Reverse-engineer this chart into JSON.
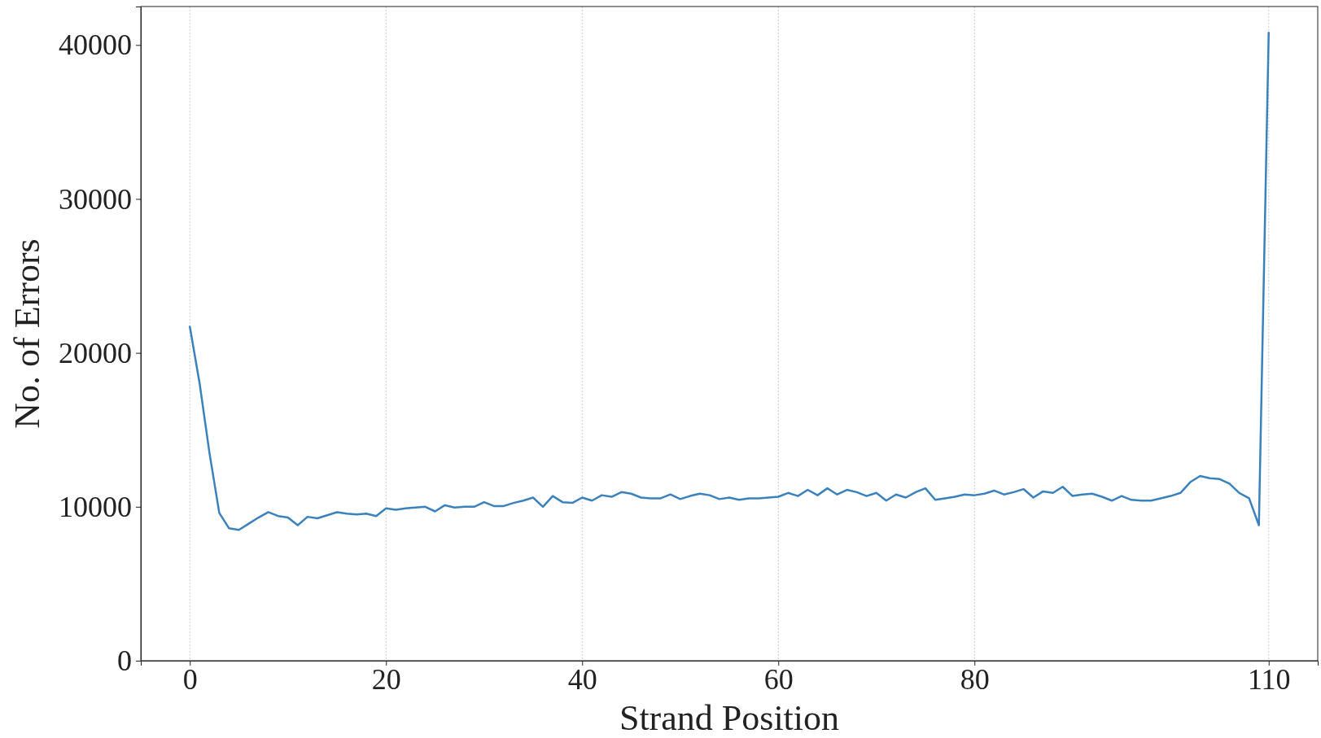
{
  "chart_data": {
    "type": "line",
    "xlabel": "Strand Position",
    "ylabel": "No. of Errors",
    "x": [
      0,
      1,
      2,
      3,
      4,
      5,
      6,
      7,
      8,
      9,
      10,
      11,
      12,
      13,
      14,
      15,
      16,
      17,
      18,
      19,
      20,
      21,
      22,
      23,
      24,
      25,
      26,
      27,
      28,
      29,
      30,
      31,
      32,
      33,
      34,
      35,
      36,
      37,
      38,
      39,
      40,
      41,
      42,
      43,
      44,
      45,
      46,
      47,
      48,
      49,
      50,
      51,
      52,
      53,
      54,
      55,
      56,
      57,
      58,
      59,
      60,
      61,
      62,
      63,
      64,
      65,
      66,
      67,
      68,
      69,
      70,
      71,
      72,
      73,
      74,
      75,
      76,
      77,
      78,
      79,
      80,
      81,
      82,
      83,
      84,
      85,
      86,
      87,
      88,
      89,
      90,
      91,
      92,
      93,
      94,
      95,
      96,
      97,
      98,
      99,
      100,
      101,
      102,
      103,
      104,
      105,
      106,
      107,
      108,
      109,
      110
    ],
    "series": [
      {
        "color": "#3b82bd",
        "values": [
          21700,
          18000,
          13500,
          9600,
          8600,
          8500,
          8900,
          9300,
          9650,
          9400,
          9300,
          8800,
          9350,
          9250,
          9450,
          9650,
          9550,
          9500,
          9550,
          9400,
          9900,
          9800,
          9900,
          9950,
          10000,
          9700,
          10100,
          9950,
          10000,
          10000,
          10300,
          10050,
          10050,
          10250,
          10400,
          10600,
          10000,
          10700,
          10300,
          10250,
          10600,
          10400,
          10750,
          10650,
          10950,
          10850,
          10600,
          10550,
          10550,
          10800,
          10500,
          10700,
          10850,
          10750,
          10500,
          10600,
          10450,
          10550,
          10550,
          10600,
          10650,
          10900,
          10700,
          11100,
          10750,
          11200,
          10800,
          11100,
          10950,
          10700,
          10900,
          10400,
          10800,
          10600,
          10950,
          11200,
          10450,
          10550,
          10650,
          10800,
          10750,
          10850,
          11050,
          10800,
          10950,
          11150,
          10600,
          11000,
          10900,
          11300,
          10700,
          10800,
          10850,
          10650,
          10400,
          10700,
          10450,
          10400,
          10400,
          10550,
          10700,
          10900,
          11600,
          12000,
          11850,
          11800,
          11500,
          10900,
          10550,
          8800,
          40800
        ]
      }
    ],
    "xlim": [
      -5,
      115
    ],
    "xticks": [
      0,
      20,
      40,
      60,
      80,
      110
    ],
    "ylim": [
      0,
      42500
    ],
    "yticks": [
      0,
      10000,
      20000,
      30000,
      40000
    ],
    "grid": "x",
    "line_style": "solid",
    "marker": "none"
  }
}
